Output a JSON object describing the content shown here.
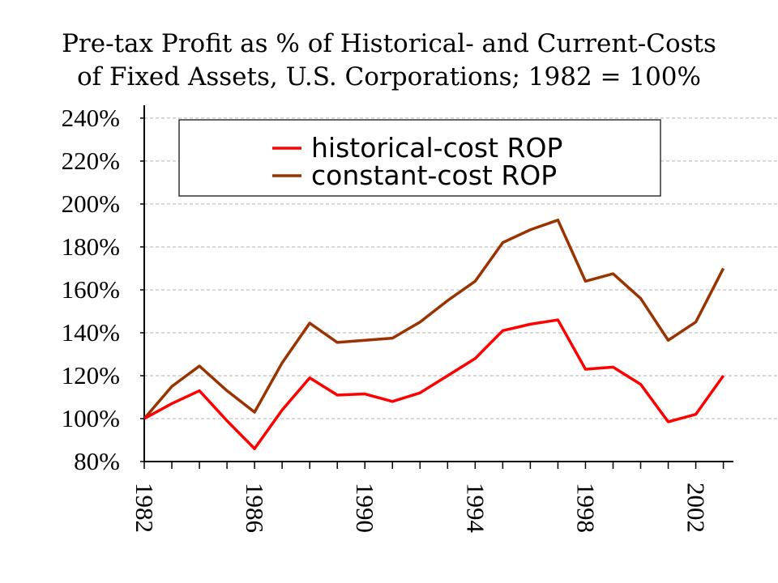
{
  "chart_data": {
    "type": "line",
    "title_line1": "Pre-tax Profit as % of Historical- and Current-Costs",
    "title_line2": "of Fixed Assets,  U.S. Corporations; 1982 = 100%",
    "xlabel": "",
    "ylabel": "",
    "x": [
      1982,
      1983,
      1984,
      1985,
      1986,
      1987,
      1988,
      1989,
      1990,
      1991,
      1992,
      1993,
      1994,
      1995,
      1996,
      1997,
      1998,
      1999,
      2000,
      2001,
      2002,
      2003
    ],
    "x_tick_labels": [
      "1982",
      "1986",
      "1990",
      "1994",
      "1998",
      "2002"
    ],
    "x_tick_values": [
      1982,
      1986,
      1990,
      1994,
      1998,
      2002
    ],
    "xlim": [
      1982,
      2003.1
    ],
    "y_tick_labels": [
      "80%",
      "100%",
      "120%",
      "140%",
      "160%",
      "180%",
      "200%",
      "220%",
      "240%"
    ],
    "y_tick_values": [
      80,
      100,
      120,
      140,
      160,
      180,
      200,
      220,
      240
    ],
    "ylim": [
      80,
      246
    ],
    "grid": "horizontal dashed",
    "legend_placement": "top",
    "series": [
      {
        "name": "historical-cost ROP",
        "color": "#ff0000",
        "values": [
          100,
          107,
          113,
          99,
          86,
          104,
          119,
          111,
          111.5,
          108,
          112,
          120,
          128,
          141,
          144,
          146,
          123,
          124,
          116,
          98.5,
          102,
          120
        ]
      },
      {
        "name": "constant-cost ROP",
        "color": "#993300",
        "values": [
          100,
          115,
          124.5,
          113,
          103,
          126,
          144.5,
          135.5,
          136.5,
          137.5,
          145,
          155,
          164,
          182,
          188,
          192.5,
          164,
          167.5,
          156,
          136.5,
          145,
          170
        ]
      }
    ]
  }
}
